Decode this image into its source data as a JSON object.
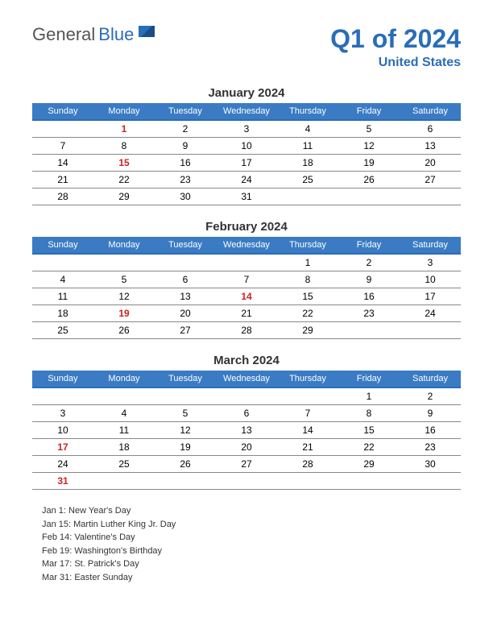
{
  "logo": {
    "part1": "General",
    "part2": "Blue"
  },
  "title": "Q1 of 2024",
  "country": "United States",
  "colors": {
    "brand": "#2a6db8",
    "header_bg": "#3a7bc4",
    "holiday": "#cc2222",
    "row_border": "#888888"
  },
  "day_headers": [
    "Sunday",
    "Monday",
    "Tuesday",
    "Wednesday",
    "Thursday",
    "Friday",
    "Saturday"
  ],
  "months": [
    {
      "name": "January 2024",
      "weeks": [
        [
          "",
          {
            "d": "1",
            "h": true
          },
          "2",
          "3",
          "4",
          "5",
          "6"
        ],
        [
          "7",
          "8",
          "9",
          "10",
          "11",
          "12",
          "13"
        ],
        [
          "14",
          {
            "d": "15",
            "h": true
          },
          "16",
          "17",
          "18",
          "19",
          "20"
        ],
        [
          "21",
          "22",
          "23",
          "24",
          "25",
          "26",
          "27"
        ],
        [
          "28",
          "29",
          "30",
          "31",
          "",
          "",
          ""
        ]
      ]
    },
    {
      "name": "February 2024",
      "weeks": [
        [
          "",
          "",
          "",
          "",
          "1",
          "2",
          "3"
        ],
        [
          "4",
          "5",
          "6",
          "7",
          "8",
          "9",
          "10"
        ],
        [
          "11",
          "12",
          "13",
          {
            "d": "14",
            "h": true
          },
          "15",
          "16",
          "17"
        ],
        [
          "18",
          {
            "d": "19",
            "h": true
          },
          "20",
          "21",
          "22",
          "23",
          "24"
        ],
        [
          "25",
          "26",
          "27",
          "28",
          "29",
          "",
          ""
        ]
      ]
    },
    {
      "name": "March 2024",
      "weeks": [
        [
          "",
          "",
          "",
          "",
          "",
          "1",
          "2"
        ],
        [
          "3",
          "4",
          "5",
          "6",
          "7",
          "8",
          "9"
        ],
        [
          "10",
          "11",
          "12",
          "13",
          "14",
          "15",
          "16"
        ],
        [
          {
            "d": "17",
            "h": true
          },
          "18",
          "19",
          "20",
          "21",
          "22",
          "23"
        ],
        [
          "24",
          "25",
          "26",
          "27",
          "28",
          "29",
          "30"
        ],
        [
          {
            "d": "31",
            "h": true
          },
          "",
          "",
          "",
          "",
          "",
          ""
        ]
      ]
    }
  ],
  "holidays": [
    "Jan 1: New Year's Day",
    "Jan 15: Martin Luther King Jr. Day",
    "Feb 14: Valentine's Day",
    "Feb 19: Washington's Birthday",
    "Mar 17: St. Patrick's Day",
    "Mar 31: Easter Sunday"
  ]
}
